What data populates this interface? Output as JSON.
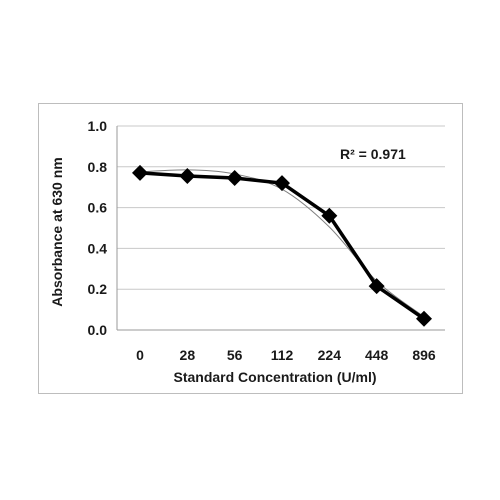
{
  "chart_data": {
    "type": "line",
    "title": "",
    "xlabel": "Standard Concentration (U/ml)",
    "ylabel": "Absorbance at 630 nm",
    "categories": [
      "0",
      "28",
      "56",
      "112",
      "224",
      "448",
      "896"
    ],
    "series": [
      {
        "values": [
          0.77,
          0.755,
          0.745,
          0.72,
          0.56,
          0.215,
          0.055
        ],
        "marker": "diamond",
        "color": "#000000"
      }
    ],
    "trendline": {
      "type": "polynomial",
      "values": [
        0.775,
        0.785,
        0.765,
        0.69,
        0.505,
        0.24,
        0.065
      ],
      "color": "#808080"
    },
    "annotation": "R² = 0.971",
    "ylim": [
      0,
      1.0
    ],
    "yticks": [
      "0.0",
      "0.2",
      "0.4",
      "0.6",
      "0.8",
      "1.0"
    ],
    "grid": "horizontal"
  }
}
